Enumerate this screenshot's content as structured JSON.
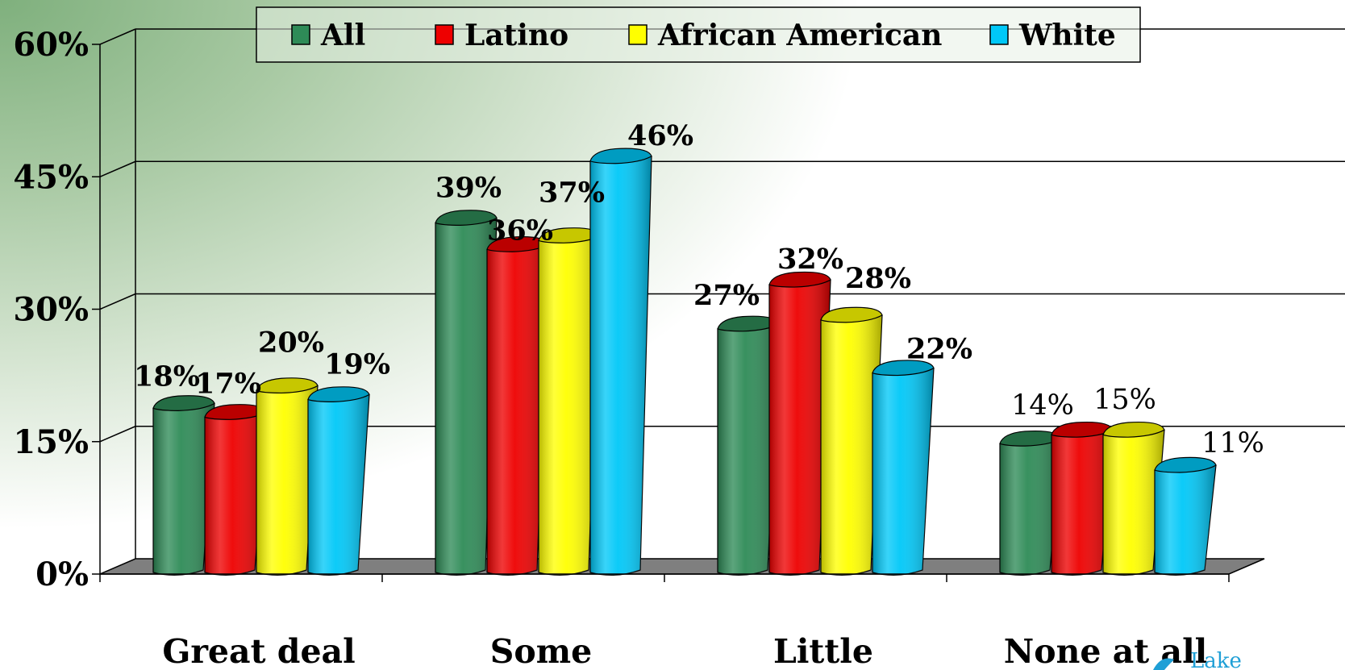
{
  "chart_data": {
    "type": "bar",
    "categories": [
      "Great deal",
      "Some",
      "Little",
      "None at all"
    ],
    "series": [
      {
        "name": "All",
        "values": [
          18,
          39,
          27,
          14
        ],
        "color": "#2e8b57"
      },
      {
        "name": "Latino",
        "values": [
          17,
          36,
          32,
          15
        ],
        "color": "#ee0000"
      },
      {
        "name": "African American",
        "values": [
          20,
          37,
          28,
          15
        ],
        "color": "#ffff00"
      },
      {
        "name": "White",
        "values": [
          19,
          46,
          22,
          11
        ],
        "color": "#00c8f8"
      }
    ],
    "data_labels": [
      [
        "18%",
        "17%",
        "20%",
        "19%"
      ],
      [
        "39%",
        "36%",
        "37%",
        "46%"
      ],
      [
        "27%",
        "32%",
        "28%",
        "22%"
      ],
      [
        "14%",
        "15%",
        "",
        "11%"
      ]
    ],
    "title": "",
    "xlabel": "",
    "ylabel": "",
    "ylim": [
      0,
      60
    ],
    "y_ticks": [
      "0%",
      "15%",
      "30%",
      "45%",
      "60%"
    ],
    "y_tick_values": [
      0,
      15,
      30,
      45,
      60
    ],
    "grid": true,
    "legend_position": "top",
    "style": "3d-cylinder"
  },
  "logo": {
    "text": "Lake"
  }
}
